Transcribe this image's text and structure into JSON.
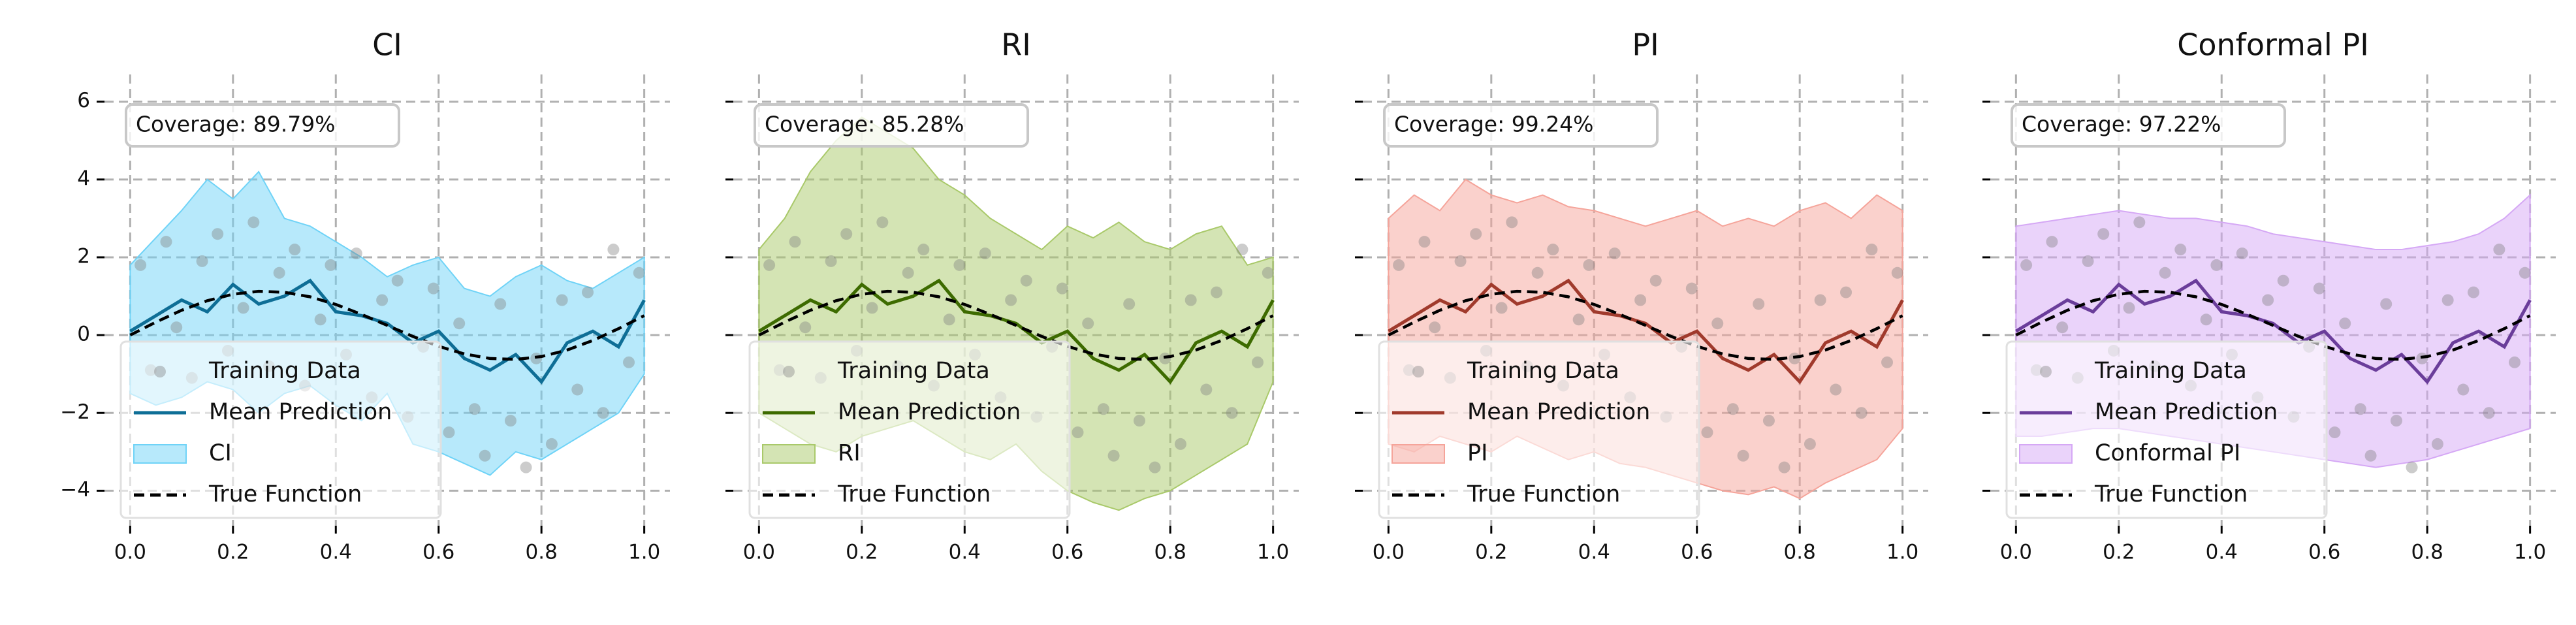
{
  "chart_data": [
    {
      "type": "line",
      "title": "CI",
      "annotation": "Coverage: 89.79%",
      "x": [
        0,
        0.05,
        0.1,
        0.15,
        0.2,
        0.25,
        0.3,
        0.35,
        0.4,
        0.45,
        0.5,
        0.55,
        0.6,
        0.65,
        0.7,
        0.75,
        0.8,
        0.85,
        0.9,
        0.95,
        1
      ],
      "series": [
        {
          "name": "Training Data",
          "style": "scatter",
          "color": "#808080",
          "x": [
            0.02,
            0.04,
            0.07,
            0.09,
            0.12,
            0.14,
            0.17,
            0.19,
            0.22,
            0.24,
            0.27,
            0.29,
            0.32,
            0.34,
            0.37,
            0.39,
            0.42,
            0.44,
            0.47,
            0.49,
            0.52,
            0.54,
            0.57,
            0.59,
            0.62,
            0.64,
            0.67,
            0.69,
            0.72,
            0.74,
            0.77,
            0.79,
            0.82,
            0.84,
            0.87,
            0.89,
            0.92,
            0.94,
            0.97,
            0.99
          ],
          "values": [
            1.8,
            -0.9,
            2.4,
            0.2,
            -1.1,
            1.9,
            2.6,
            -0.4,
            0.7,
            2.9,
            -0.8,
            1.6,
            2.2,
            -1.3,
            0.4,
            1.8,
            -0.5,
            2.1,
            -1.6,
            0.9,
            1.4,
            -2.1,
            -0.3,
            1.2,
            -2.5,
            0.3,
            -1.9,
            -3.1,
            0.8,
            -2.2,
            -3.4,
            -0.6,
            -2.8,
            0.9,
            -1.4,
            1.1,
            -2.0,
            2.2,
            -0.7,
            1.6
          ]
        },
        {
          "name": "Mean Prediction",
          "style": "line",
          "color": "#0e6e96",
          "values": [
            0.1,
            0.5,
            0.9,
            0.6,
            1.3,
            0.8,
            1.0,
            1.4,
            0.6,
            0.5,
            0.3,
            -0.2,
            0.1,
            -0.6,
            -0.9,
            -0.5,
            -1.2,
            -0.2,
            0.1,
            -0.3,
            0.9
          ]
        },
        {
          "name": "CI",
          "style": "band",
          "color": "#6fd3f7",
          "upper": [
            1.8,
            2.5,
            3.2,
            4.0,
            3.5,
            4.2,
            3.0,
            2.8,
            2.4,
            2.0,
            1.5,
            1.8,
            2.0,
            1.2,
            1.0,
            1.5,
            1.8,
            1.4,
            1.2,
            1.6,
            2.0
          ],
          "lower": [
            -1.5,
            -1.8,
            -1.6,
            -1.2,
            -1.4,
            -2.0,
            -1.5,
            -1.3,
            -1.8,
            -2.2,
            -1.5,
            -2.8,
            -3.0,
            -3.3,
            -3.6,
            -3.0,
            -3.2,
            -2.8,
            -2.4,
            -2.0,
            -1.0
          ]
        },
        {
          "name": "True Function",
          "style": "dashed",
          "color": "#000000",
          "values": [
            0,
            0.334,
            0.638,
            0.884,
            1.051,
            1.125,
            1.101,
            0.984,
            0.788,
            0.534,
            0.25,
            -0.034,
            -0.288,
            -0.484,
            -0.601,
            -0.625,
            -0.551,
            -0.384,
            -0.138,
            0.166,
            0.5
          ]
        }
      ],
      "xlim": [
        -0.05,
        1.05
      ],
      "ylim": [
        -4.9,
        6.7
      ],
      "xticks": [
        {
          "value": 0,
          "label": "0.0"
        },
        {
          "value": 0.2,
          "label": "0.2"
        },
        {
          "value": 0.4,
          "label": "0.4"
        },
        {
          "value": 0.6,
          "label": "0.6"
        },
        {
          "value": 0.8,
          "label": "0.8"
        },
        {
          "value": 1,
          "label": "1.0"
        }
      ],
      "yticks": [
        {
          "value": -4,
          "label": "−4"
        },
        {
          "value": -2,
          "label": "−2"
        },
        0,
        2,
        4,
        6
      ],
      "grid": true,
      "legend": "lower left"
    },
    {
      "type": "line",
      "title": "RI",
      "annotation": "Coverage: 85.28%",
      "x": [
        0,
        0.05,
        0.1,
        0.15,
        0.2,
        0.25,
        0.3,
        0.35,
        0.4,
        0.45,
        0.5,
        0.55,
        0.6,
        0.65,
        0.7,
        0.75,
        0.8,
        0.85,
        0.9,
        0.95,
        1
      ],
      "series": [
        {
          "name": "Training Data",
          "style": "scatter",
          "color": "#808080",
          "x": [
            0.02,
            0.04,
            0.07,
            0.09,
            0.12,
            0.14,
            0.17,
            0.19,
            0.22,
            0.24,
            0.27,
            0.29,
            0.32,
            0.34,
            0.37,
            0.39,
            0.42,
            0.44,
            0.47,
            0.49,
            0.52,
            0.54,
            0.57,
            0.59,
            0.62,
            0.64,
            0.67,
            0.69,
            0.72,
            0.74,
            0.77,
            0.79,
            0.82,
            0.84,
            0.87,
            0.89,
            0.92,
            0.94,
            0.97,
            0.99
          ],
          "values": [
            1.8,
            -0.9,
            2.4,
            0.2,
            -1.1,
            1.9,
            2.6,
            -0.4,
            0.7,
            2.9,
            -0.8,
            1.6,
            2.2,
            -1.3,
            0.4,
            1.8,
            -0.5,
            2.1,
            -1.6,
            0.9,
            1.4,
            -2.1,
            -0.3,
            1.2,
            -2.5,
            0.3,
            -1.9,
            -3.1,
            0.8,
            -2.2,
            -3.4,
            -0.6,
            -2.8,
            0.9,
            -1.4,
            1.1,
            -2.0,
            2.2,
            -0.7,
            1.6
          ]
        },
        {
          "name": "Mean Prediction",
          "style": "line",
          "color": "#3d6b00",
          "values": [
            0.1,
            0.5,
            0.9,
            0.6,
            1.3,
            0.8,
            1.0,
            1.4,
            0.6,
            0.5,
            0.3,
            -0.2,
            0.1,
            -0.6,
            -0.9,
            -0.5,
            -1.2,
            -0.2,
            0.1,
            -0.3,
            0.9
          ]
        },
        {
          "name": "RI",
          "style": "band",
          "color": "#a9c96a",
          "upper": [
            2.2,
            3.0,
            4.2,
            5.0,
            5.6,
            5.2,
            4.8,
            4.0,
            3.6,
            3.0,
            2.6,
            2.2,
            2.8,
            2.5,
            2.9,
            2.4,
            2.2,
            2.6,
            2.8,
            1.8,
            2.0
          ],
          "lower": [
            -2.0,
            -2.4,
            -2.8,
            -3.0,
            -2.6,
            -2.4,
            -2.2,
            -2.6,
            -3.0,
            -3.2,
            -2.8,
            -3.5,
            -4.0,
            -4.3,
            -4.5,
            -4.2,
            -4.0,
            -3.6,
            -3.2,
            -2.8,
            -1.2
          ]
        },
        {
          "name": "True Function",
          "style": "dashed",
          "color": "#000000",
          "values": [
            0,
            0.334,
            0.638,
            0.884,
            1.051,
            1.125,
            1.101,
            0.984,
            0.788,
            0.534,
            0.25,
            -0.034,
            -0.288,
            -0.484,
            -0.601,
            -0.625,
            -0.551,
            -0.384,
            -0.138,
            0.166,
            0.5
          ]
        }
      ],
      "xlim": [
        -0.05,
        1.05
      ],
      "ylim": [
        -4.9,
        6.7
      ],
      "xticks": [
        {
          "value": 0,
          "label": "0.0"
        },
        {
          "value": 0.2,
          "label": "0.2"
        },
        {
          "value": 0.4,
          "label": "0.4"
        },
        {
          "value": 0.6,
          "label": "0.6"
        },
        {
          "value": 0.8,
          "label": "0.8"
        },
        {
          "value": 1,
          "label": "1.0"
        }
      ],
      "yticks": [
        -4,
        -2,
        0,
        2,
        4,
        6
      ],
      "grid": true,
      "legend": "lower left"
    },
    {
      "type": "line",
      "title": "PI",
      "annotation": "Coverage: 99.24%",
      "x": [
        0,
        0.05,
        0.1,
        0.15,
        0.2,
        0.25,
        0.3,
        0.35,
        0.4,
        0.45,
        0.5,
        0.55,
        0.6,
        0.65,
        0.7,
        0.75,
        0.8,
        0.85,
        0.9,
        0.95,
        1
      ],
      "series": [
        {
          "name": "Training Data",
          "style": "scatter",
          "color": "#808080",
          "x": [
            0.02,
            0.04,
            0.07,
            0.09,
            0.12,
            0.14,
            0.17,
            0.19,
            0.22,
            0.24,
            0.27,
            0.29,
            0.32,
            0.34,
            0.37,
            0.39,
            0.42,
            0.44,
            0.47,
            0.49,
            0.52,
            0.54,
            0.57,
            0.59,
            0.62,
            0.64,
            0.67,
            0.69,
            0.72,
            0.74,
            0.77,
            0.79,
            0.82,
            0.84,
            0.87,
            0.89,
            0.92,
            0.94,
            0.97,
            0.99
          ],
          "values": [
            1.8,
            -0.9,
            2.4,
            0.2,
            -1.1,
            1.9,
            2.6,
            -0.4,
            0.7,
            2.9,
            -0.8,
            1.6,
            2.2,
            -1.3,
            0.4,
            1.8,
            -0.5,
            2.1,
            -1.6,
            0.9,
            1.4,
            -2.1,
            -0.3,
            1.2,
            -2.5,
            0.3,
            -1.9,
            -3.1,
            0.8,
            -2.2,
            -3.4,
            -0.6,
            -2.8,
            0.9,
            -1.4,
            1.1,
            -2.0,
            2.2,
            -0.7,
            1.6
          ]
        },
        {
          "name": "Mean Prediction",
          "style": "line",
          "color": "#a03a2c",
          "values": [
            0.1,
            0.5,
            0.9,
            0.6,
            1.3,
            0.8,
            1.0,
            1.4,
            0.6,
            0.5,
            0.3,
            -0.2,
            0.1,
            -0.6,
            -0.9,
            -0.5,
            -1.2,
            -0.2,
            0.1,
            -0.3,
            0.9
          ]
        },
        {
          "name": "PI",
          "style": "band",
          "color": "#f5a49a",
          "upper": [
            3.0,
            3.6,
            3.2,
            4.0,
            3.6,
            3.4,
            3.6,
            3.3,
            3.2,
            3.0,
            2.8,
            3.0,
            3.2,
            2.8,
            3.0,
            2.8,
            3.2,
            3.4,
            3.0,
            3.6,
            3.2
          ],
          "lower": [
            -2.8,
            -3.0,
            -2.6,
            -2.8,
            -3.0,
            -2.6,
            -2.9,
            -3.2,
            -3.0,
            -3.3,
            -3.4,
            -3.6,
            -3.8,
            -4.0,
            -4.1,
            -3.9,
            -4.2,
            -3.8,
            -3.5,
            -3.2,
            -2.4
          ]
        },
        {
          "name": "True Function",
          "style": "dashed",
          "color": "#000000",
          "values": [
            0,
            0.334,
            0.638,
            0.884,
            1.051,
            1.125,
            1.101,
            0.984,
            0.788,
            0.534,
            0.25,
            -0.034,
            -0.288,
            -0.484,
            -0.601,
            -0.625,
            -0.551,
            -0.384,
            -0.138,
            0.166,
            0.5
          ]
        }
      ],
      "xlim": [
        -0.05,
        1.05
      ],
      "ylim": [
        -4.9,
        6.7
      ],
      "xticks": [
        {
          "value": 0,
          "label": "0.0"
        },
        {
          "value": 0.2,
          "label": "0.2"
        },
        {
          "value": 0.4,
          "label": "0.4"
        },
        {
          "value": 0.6,
          "label": "0.6"
        },
        {
          "value": 0.8,
          "label": "0.8"
        },
        {
          "value": 1,
          "label": "1.0"
        }
      ],
      "yticks": [
        -4,
        -2,
        0,
        2,
        4,
        6
      ],
      "grid": true,
      "legend": "lower left"
    },
    {
      "type": "line",
      "title": "Conformal PI",
      "annotation": "Coverage: 97.22%",
      "x": [
        0,
        0.05,
        0.1,
        0.15,
        0.2,
        0.25,
        0.3,
        0.35,
        0.4,
        0.45,
        0.5,
        0.55,
        0.6,
        0.65,
        0.7,
        0.75,
        0.8,
        0.85,
        0.9,
        0.95,
        1
      ],
      "series": [
        {
          "name": "Training Data",
          "style": "scatter",
          "color": "#808080",
          "x": [
            0.02,
            0.04,
            0.07,
            0.09,
            0.12,
            0.14,
            0.17,
            0.19,
            0.22,
            0.24,
            0.27,
            0.29,
            0.32,
            0.34,
            0.37,
            0.39,
            0.42,
            0.44,
            0.47,
            0.49,
            0.52,
            0.54,
            0.57,
            0.59,
            0.62,
            0.64,
            0.67,
            0.69,
            0.72,
            0.74,
            0.77,
            0.79,
            0.82,
            0.84,
            0.87,
            0.89,
            0.92,
            0.94,
            0.97,
            0.99
          ],
          "values": [
            1.8,
            -0.9,
            2.4,
            0.2,
            -1.1,
            1.9,
            2.6,
            -0.4,
            0.7,
            2.9,
            -0.8,
            1.6,
            2.2,
            -1.3,
            0.4,
            1.8,
            -0.5,
            2.1,
            -1.6,
            0.9,
            1.4,
            -2.1,
            -0.3,
            1.2,
            -2.5,
            0.3,
            -1.9,
            -3.1,
            0.8,
            -2.2,
            -3.4,
            -0.6,
            -2.8,
            0.9,
            -1.4,
            1.1,
            -2.0,
            2.2,
            -0.7,
            1.6
          ]
        },
        {
          "name": "Mean Prediction",
          "style": "line",
          "color": "#6a3d9a",
          "values": [
            0.1,
            0.5,
            0.9,
            0.6,
            1.3,
            0.8,
            1.0,
            1.4,
            0.6,
            0.5,
            0.3,
            -0.2,
            0.1,
            -0.6,
            -0.9,
            -0.5,
            -1.2,
            -0.2,
            0.1,
            -0.3,
            0.9
          ]
        },
        {
          "name": "Conformal PI",
          "style": "band",
          "color": "#d5a8f5",
          "upper": [
            2.8,
            2.9,
            3.0,
            3.1,
            3.2,
            3.1,
            3.0,
            3.0,
            2.9,
            2.8,
            2.6,
            2.5,
            2.4,
            2.3,
            2.2,
            2.2,
            2.3,
            2.4,
            2.6,
            3.0,
            3.6
          ],
          "lower": [
            -2.6,
            -2.6,
            -2.5,
            -2.4,
            -2.4,
            -2.5,
            -2.6,
            -2.7,
            -2.8,
            -2.9,
            -3.0,
            -3.1,
            -3.2,
            -3.3,
            -3.4,
            -3.3,
            -3.2,
            -3.0,
            -2.8,
            -2.6,
            -2.4
          ]
        },
        {
          "name": "True Function",
          "style": "dashed",
          "color": "#000000",
          "values": [
            0,
            0.334,
            0.638,
            0.884,
            1.051,
            1.125,
            1.101,
            0.984,
            0.788,
            0.534,
            0.25,
            -0.034,
            -0.288,
            -0.484,
            -0.601,
            -0.625,
            -0.551,
            -0.384,
            -0.138,
            0.166,
            0.5
          ]
        }
      ],
      "xlim": [
        -0.05,
        1.05
      ],
      "ylim": [
        -4.9,
        6.7
      ],
      "xticks": [
        {
          "value": 0,
          "label": "0.0"
        },
        {
          "value": 0.2,
          "label": "0.2"
        },
        {
          "value": 0.4,
          "label": "0.4"
        },
        {
          "value": 0.6,
          "label": "0.6"
        },
        {
          "value": 0.8,
          "label": "0.8"
        },
        {
          "value": 1,
          "label": "1.0"
        }
      ],
      "yticks": [
        -4,
        -2,
        0,
        2,
        4,
        6
      ],
      "grid": true,
      "legend": "lower left"
    }
  ]
}
